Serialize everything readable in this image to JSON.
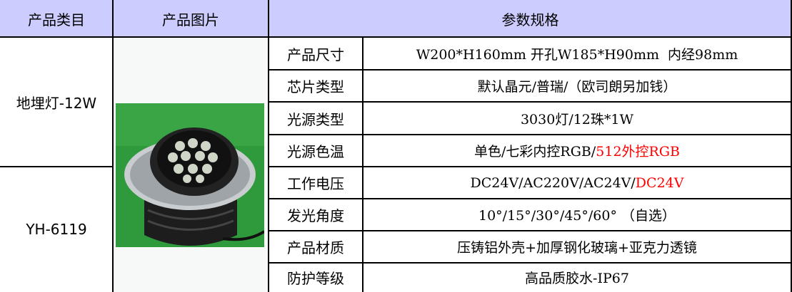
{
  "header": {
    "category": "产品类目",
    "image": "产品图片",
    "specs": "参数规格"
  },
  "product": {
    "category": "地埋灯-12W",
    "model": "YH-6119"
  },
  "specs": [
    {
      "label": "产品尺寸",
      "value": "W200*H160mm 开孔W185*H90mm  内经98mm"
    },
    {
      "label": "芯片类型",
      "value": "默认晶元/普瑞/（欧司朗另加钱）"
    },
    {
      "label": "光源类型",
      "value": "3030灯/12珠*1W"
    },
    {
      "label": "光源色温",
      "value": "单色/七彩内控RGB/",
      "value_red": "512外控RGB"
    },
    {
      "label": "工作电压",
      "value": "DC24V/AC220V/AC24V/",
      "value_red": "DC24V"
    },
    {
      "label": "发光角度",
      "value": "10°/15°/30°/45°/60° （自选）"
    },
    {
      "label": "产品材质",
      "value": "压铸铝外壳+加厚钢化玻璃+亚克力透镜"
    },
    {
      "label": "防护等级",
      "value": "高品质胶水-IP67"
    }
  ],
  "colors": {
    "header_bg": "#ccccff",
    "highlight": "#ff0000",
    "image_bg": "#f7f9f8"
  }
}
